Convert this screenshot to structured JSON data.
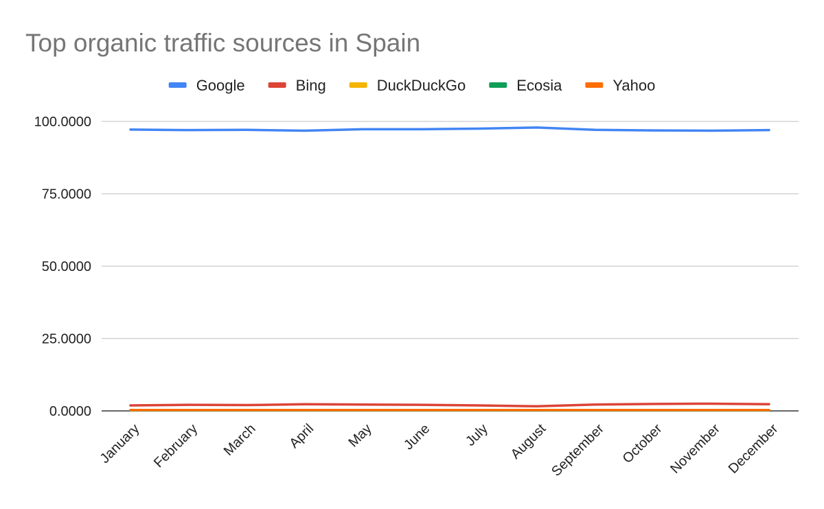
{
  "chart_data": {
    "type": "line",
    "title": "Top organic traffic sources in Spain",
    "xlabel": "",
    "ylabel": "",
    "categories": [
      "January",
      "February",
      "March",
      "April",
      "May",
      "June",
      "July",
      "August",
      "September",
      "October",
      "November",
      "December"
    ],
    "ylim": [
      0,
      100
    ],
    "yticks": [
      "0.0000",
      "25.0000",
      "50.0000",
      "75.0000",
      "100.0000"
    ],
    "ytick_values": [
      0,
      25,
      50,
      75,
      100
    ],
    "grid": true,
    "legend_position": "top",
    "series": [
      {
        "name": "Google",
        "color": "#4285f4",
        "values": [
          97.2,
          97.0,
          97.1,
          96.8,
          97.3,
          97.3,
          97.5,
          97.9,
          97.1,
          96.9,
          96.8,
          97.0
        ]
      },
      {
        "name": "Bing",
        "color": "#db4437",
        "values": [
          1.9,
          2.1,
          2.0,
          2.3,
          2.2,
          2.1,
          1.9,
          1.6,
          2.2,
          2.4,
          2.5,
          2.3
        ]
      },
      {
        "name": "DuckDuckGo",
        "color": "#f4b400",
        "values": [
          0.3,
          0.3,
          0.3,
          0.3,
          0.3,
          0.3,
          0.3,
          0.3,
          0.3,
          0.3,
          0.3,
          0.3
        ]
      },
      {
        "name": "Ecosia",
        "color": "#0f9d58",
        "values": [
          0.2,
          0.2,
          0.2,
          0.2,
          0.2,
          0.2,
          0.2,
          0.2,
          0.2,
          0.2,
          0.2,
          0.2
        ]
      },
      {
        "name": "Yahoo",
        "color": "#ff6d01",
        "values": [
          0.3,
          0.3,
          0.3,
          0.3,
          0.3,
          0.3,
          0.3,
          0.3,
          0.3,
          0.3,
          0.3,
          0.3
        ]
      }
    ]
  }
}
